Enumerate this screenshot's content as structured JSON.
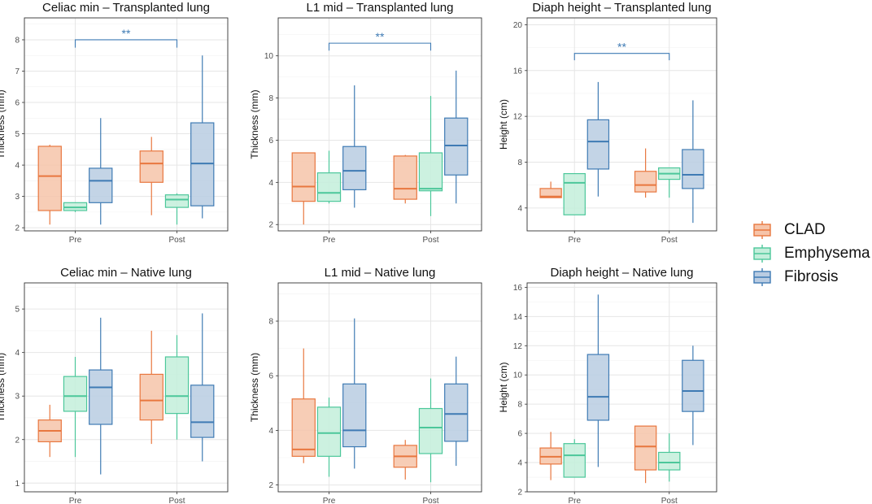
{
  "legend": {
    "title": "",
    "items": [
      {
        "name": "CLAD",
        "color": "#E8773F",
        "fill": "#F6C4A9"
      },
      {
        "name": "Emphysema",
        "color": "#4CC79A",
        "fill": "#C3EEDB"
      },
      {
        "name": "Fibrosis",
        "color": "#3F7BB4",
        "fill": "#B9CCE2"
      }
    ]
  },
  "chart_data": [
    {
      "type": "box",
      "title": "Celiac min – Transplanted lung",
      "ylabel": "Thickness (mm)",
      "xlabel": "",
      "categories": [
        "Pre",
        "Post"
      ],
      "ylim": [
        1.9,
        8.7
      ],
      "yticks": [
        2,
        3,
        4,
        5,
        6,
        7,
        8
      ],
      "series": [
        {
          "name": "CLAD",
          "boxes": [
            {
              "min": 2.1,
              "q1": 2.55,
              "median": 3.65,
              "q3": 4.6,
              "max": 4.65
            },
            {
              "min": 2.4,
              "q1": 3.45,
              "median": 4.05,
              "q3": 4.45,
              "max": 4.9
            }
          ]
        },
        {
          "name": "Emphysema",
          "boxes": [
            {
              "min": 2.5,
              "q1": 2.55,
              "median": 2.65,
              "q3": 2.8,
              "max": 2.8
            },
            {
              "min": 2.1,
              "q1": 2.65,
              "median": 2.9,
              "q3": 3.05,
              "max": 3.1
            }
          ]
        },
        {
          "name": "Fibrosis",
          "boxes": [
            {
              "min": 2.1,
              "q1": 2.8,
              "median": 3.5,
              "q3": 3.9,
              "max": 5.5
            },
            {
              "min": 2.3,
              "q1": 2.7,
              "median": 4.05,
              "q3": 5.35,
              "max": 7.5
            }
          ]
        }
      ],
      "significance": {
        "label": "**",
        "y": 8.0,
        "tick": 0.25
      }
    },
    {
      "type": "box",
      "title": "L1 mid – Transplanted lung",
      "ylabel": "Thickness (mm)",
      "xlabel": "",
      "categories": [
        "Pre",
        "Post"
      ],
      "ylim": [
        1.7,
        11.8
      ],
      "yticks": [
        2,
        4,
        6,
        8,
        10
      ],
      "series": [
        {
          "name": "CLAD",
          "boxes": [
            {
              "min": 2.0,
              "q1": 3.1,
              "median": 3.8,
              "q3": 5.4,
              "max": 5.4
            },
            {
              "min": 3.0,
              "q1": 3.2,
              "median": 3.7,
              "q3": 5.25,
              "max": 5.3
            }
          ]
        },
        {
          "name": "Emphysema",
          "boxes": [
            {
              "min": 3.0,
              "q1": 3.1,
              "median": 3.5,
              "q3": 4.45,
              "max": 5.5
            },
            {
              "min": 2.4,
              "q1": 3.6,
              "median": 3.7,
              "q3": 5.4,
              "max": 8.1
            }
          ]
        },
        {
          "name": "Fibrosis",
          "boxes": [
            {
              "min": 2.8,
              "q1": 3.65,
              "median": 4.55,
              "q3": 5.7,
              "max": 8.6
            },
            {
              "min": 3.0,
              "q1": 4.35,
              "median": 5.75,
              "q3": 7.05,
              "max": 9.3
            }
          ]
        }
      ],
      "significance": {
        "label": "**",
        "y": 10.6,
        "tick": 0.35
      }
    },
    {
      "type": "box",
      "title": "Diaph height – Transplanted lung",
      "ylabel": "Height (cm)",
      "xlabel": "",
      "categories": [
        "Pre",
        "Post"
      ],
      "ylim": [
        2.0,
        20.6
      ],
      "yticks": [
        4,
        8,
        12,
        16,
        20
      ],
      "series": [
        {
          "name": "CLAD",
          "boxes": [
            {
              "min": 4.9,
              "q1": 4.9,
              "median": 5.0,
              "q3": 5.7,
              "max": 6.3
            },
            {
              "min": 4.9,
              "q1": 5.4,
              "median": 6.0,
              "q3": 7.2,
              "max": 9.2
            }
          ]
        },
        {
          "name": "Emphysema",
          "boxes": [
            {
              "min": 3.4,
              "q1": 3.4,
              "median": 6.2,
              "q3": 7.0,
              "max": 7.0
            },
            {
              "min": 4.9,
              "q1": 6.5,
              "median": 7.0,
              "q3": 7.5,
              "max": 7.5
            }
          ]
        },
        {
          "name": "Fibrosis",
          "boxes": [
            {
              "min": 5.0,
              "q1": 7.4,
              "median": 9.8,
              "q3": 11.7,
              "max": 15.0
            },
            {
              "min": 2.7,
              "q1": 5.7,
              "median": 6.9,
              "q3": 9.1,
              "max": 13.4
            }
          ]
        }
      ],
      "significance": {
        "label": "**",
        "y": 17.5,
        "tick": 0.6
      }
    },
    {
      "type": "box",
      "title": "Celiac min – Native lung",
      "ylabel": "Thickness (mm)",
      "xlabel": "",
      "categories": [
        "Pre",
        "Post"
      ],
      "ylim": [
        0.8,
        5.6
      ],
      "yticks": [
        1,
        2,
        3,
        4,
        5
      ],
      "series": [
        {
          "name": "CLAD",
          "boxes": [
            {
              "min": 1.6,
              "q1": 1.95,
              "median": 2.2,
              "q3": 2.45,
              "max": 2.8
            },
            {
              "min": 1.9,
              "q1": 2.45,
              "median": 2.9,
              "q3": 3.5,
              "max": 4.5
            }
          ]
        },
        {
          "name": "Emphysema",
          "boxes": [
            {
              "min": 1.6,
              "q1": 2.65,
              "median": 3.0,
              "q3": 3.45,
              "max": 3.9
            },
            {
              "min": 2.0,
              "q1": 2.6,
              "median": 3.0,
              "q3": 3.9,
              "max": 4.4
            }
          ]
        },
        {
          "name": "Fibrosis",
          "boxes": [
            {
              "min": 1.2,
              "q1": 2.35,
              "median": 3.2,
              "q3": 3.6,
              "max": 4.8
            },
            {
              "min": 1.5,
              "q1": 2.05,
              "median": 2.4,
              "q3": 3.25,
              "max": 4.9
            }
          ]
        }
      ]
    },
    {
      "type": "box",
      "title": "L1 mid – Native lung",
      "ylabel": "Thickness (mm)",
      "xlabel": "",
      "categories": [
        "Pre",
        "Post"
      ],
      "ylim": [
        1.75,
        9.4
      ],
      "yticks": [
        2,
        4,
        6,
        8
      ],
      "series": [
        {
          "name": "CLAD",
          "boxes": [
            {
              "min": 2.8,
              "q1": 3.05,
              "median": 3.3,
              "q3": 5.15,
              "max": 7.0
            },
            {
              "min": 2.2,
              "q1": 2.65,
              "median": 3.05,
              "q3": 3.45,
              "max": 3.65
            }
          ]
        },
        {
          "name": "Emphysema",
          "boxes": [
            {
              "min": 2.3,
              "q1": 3.05,
              "median": 3.9,
              "q3": 4.85,
              "max": 5.2
            },
            {
              "min": 2.1,
              "q1": 3.15,
              "median": 4.1,
              "q3": 4.8,
              "max": 5.9
            }
          ]
        },
        {
          "name": "Fibrosis",
          "boxes": [
            {
              "min": 2.6,
              "q1": 3.4,
              "median": 4.0,
              "q3": 5.7,
              "max": 8.1
            },
            {
              "min": 2.7,
              "q1": 3.6,
              "median": 4.6,
              "q3": 5.7,
              "max": 6.7
            }
          ]
        }
      ]
    },
    {
      "type": "box",
      "title": "Diaph height – Native lung",
      "ylabel": "Height (cm)",
      "xlabel": "",
      "categories": [
        "Pre",
        "Post"
      ],
      "ylim": [
        2.0,
        16.3
      ],
      "yticks": [
        2,
        4,
        6,
        8,
        10,
        12,
        14,
        16
      ],
      "series": [
        {
          "name": "CLAD",
          "boxes": [
            {
              "min": 2.8,
              "q1": 3.9,
              "median": 4.4,
              "q3": 5.0,
              "max": 6.1
            },
            {
              "min": 2.6,
              "q1": 3.5,
              "median": 5.1,
              "q3": 6.5,
              "max": 6.5
            }
          ]
        },
        {
          "name": "Emphysema",
          "boxes": [
            {
              "min": 3.0,
              "q1": 3.0,
              "median": 4.5,
              "q3": 5.3,
              "max": 5.6
            },
            {
              "min": 2.7,
              "q1": 3.5,
              "median": 4.0,
              "q3": 4.7,
              "max": 6.0
            }
          ]
        },
        {
          "name": "Fibrosis",
          "boxes": [
            {
              "min": 3.7,
              "q1": 6.9,
              "median": 8.5,
              "q3": 11.4,
              "max": 15.5
            },
            {
              "min": 5.2,
              "q1": 7.5,
              "median": 8.9,
              "q3": 11.0,
              "max": 12.0
            }
          ]
        }
      ]
    }
  ]
}
